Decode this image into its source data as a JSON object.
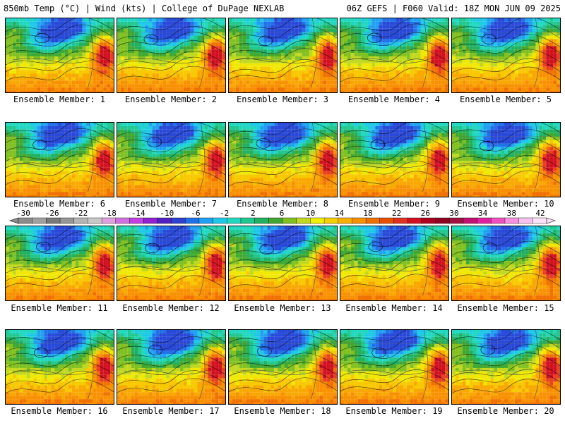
{
  "header": {
    "left": "850mb Temp (°C) | Wind (kts) | College of DuPage NEXLAB",
    "right": "06Z GEFS | F060 Valid: 18Z MON JUN 09 2025"
  },
  "member_label_prefix": "Ensemble Member:",
  "members": [
    "1",
    "2",
    "3",
    "4",
    "5",
    "6",
    "7",
    "8",
    "9",
    "10",
    "11",
    "12",
    "13",
    "14",
    "15",
    "16",
    "17",
    "18",
    "19",
    "20"
  ],
  "colorbar": {
    "ticks": [
      "-30",
      "-26",
      "-22",
      "-18",
      "-14",
      "-10",
      "-6",
      "-2",
      "2",
      "6",
      "10",
      "14",
      "18",
      "22",
      "26",
      "30",
      "34",
      "38",
      "42"
    ],
    "colors": [
      "#8c8c8c",
      "#a0a0a0",
      "#7a7a7a",
      "#969696",
      "#b4b4b4",
      "#c8c8c8",
      "#e0a0e0",
      "#d070e0",
      "#c040e0",
      "#9020d0",
      "#5020c0",
      "#3040d0",
      "#2070e8",
      "#20a0f0",
      "#20c8e8",
      "#20d8c0",
      "#20c890",
      "#20b060",
      "#40a830",
      "#80c020",
      "#c0d820",
      "#f0f000",
      "#f8d000",
      "#f8b000",
      "#f89000",
      "#f07000",
      "#e85000",
      "#e03020",
      "#d01020",
      "#b00020",
      "#900020",
      "#a01040",
      "#c01070",
      "#e020a0",
      "#f050c0",
      "#f890e0",
      "#f8c0f0",
      "#fbe0f8"
    ]
  },
  "colors": {
    "panel_border": "#000000",
    "text": "#000000"
  }
}
